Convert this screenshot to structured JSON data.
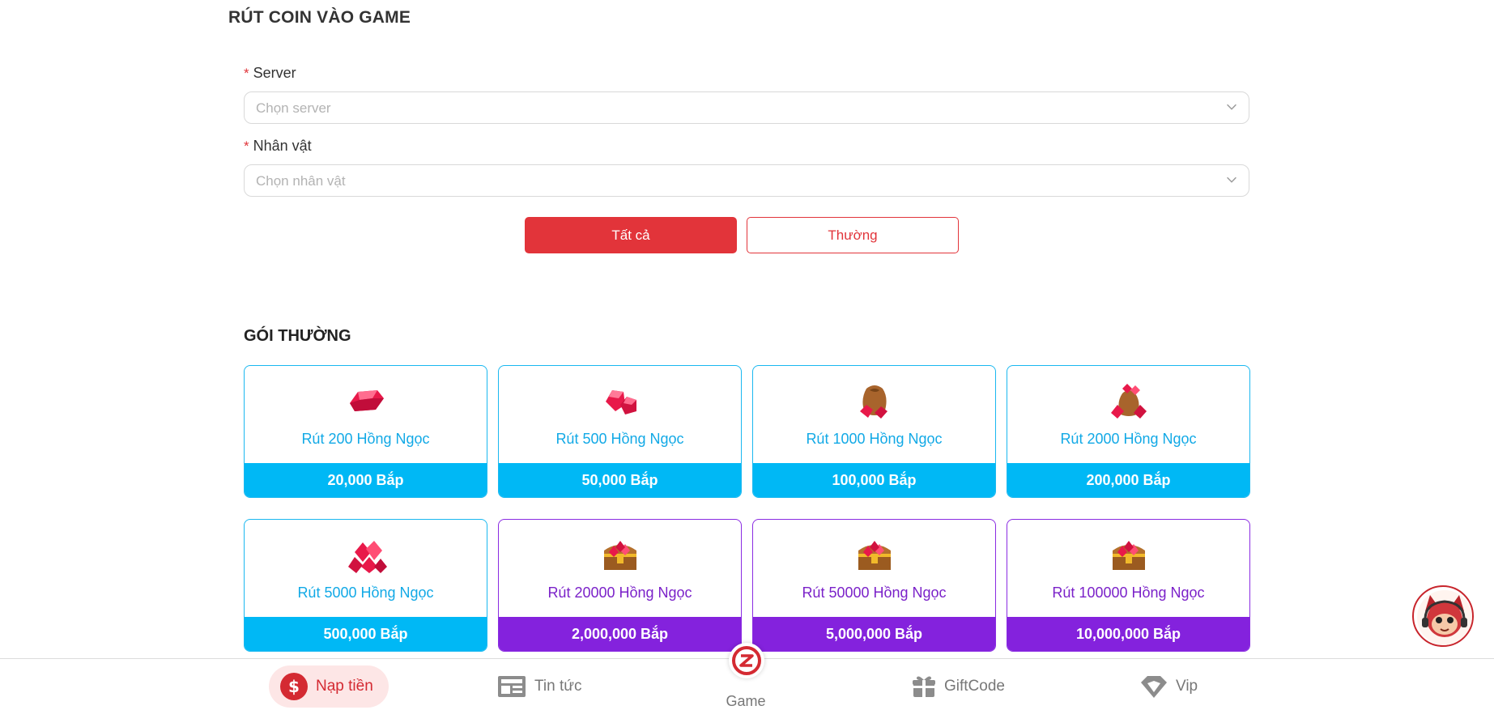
{
  "page_title": "RÚT COIN VÀO GAME",
  "form": {
    "server_label": "Server",
    "server_placeholder": "Chọn server",
    "character_label": "Nhân vật",
    "character_placeholder": "Chọn nhân vật",
    "required_mark": "*"
  },
  "tabs": [
    {
      "label": "Tất cả",
      "active": true
    },
    {
      "label": "Thường",
      "active": false
    }
  ],
  "section_title": "GÓI THƯỜNG",
  "packages": [
    {
      "name": "Rút 200 Hồng Ngọc",
      "price": "20,000 Bắp",
      "theme": "blue",
      "icon": "ruby-gem-icon"
    },
    {
      "name": "Rút 500 Hồng Ngọc",
      "price": "50,000 Bắp",
      "theme": "blue",
      "icon": "ruby-gems-icon"
    },
    {
      "name": "Rút 1000 Hồng Ngọc",
      "price": "100,000 Bắp",
      "theme": "blue",
      "icon": "ruby-bag-icon"
    },
    {
      "name": "Rút 2000 Hồng Ngọc",
      "price": "200,000 Bắp",
      "theme": "blue",
      "icon": "ruby-pile-bag-icon"
    },
    {
      "name": "Rút 5000 Hồng Ngọc",
      "price": "500,000 Bắp",
      "theme": "blue",
      "icon": "ruby-cluster-icon"
    },
    {
      "name": "Rút 20000 Hồng Ngọc",
      "price": "2,000,000 Bắp",
      "theme": "purple",
      "icon": "ruby-chest-icon"
    },
    {
      "name": "Rút 50000 Hồng Ngọc",
      "price": "5,000,000 Bắp",
      "theme": "purple",
      "icon": "ruby-chest-icon"
    },
    {
      "name": "Rút 100000 Hồng Ngọc",
      "price": "10,000,000 Bắp",
      "theme": "purple",
      "icon": "ruby-chest-icon"
    }
  ],
  "bottom_nav": {
    "deposit": "Nạp tiền",
    "news": "Tin tức",
    "game": "Game",
    "giftcode": "GiftCode",
    "vip": "Vip"
  },
  "colors": {
    "accent_red": "#e2343a",
    "card_blue": "#00b8f5",
    "card_purple": "#8422dd"
  }
}
